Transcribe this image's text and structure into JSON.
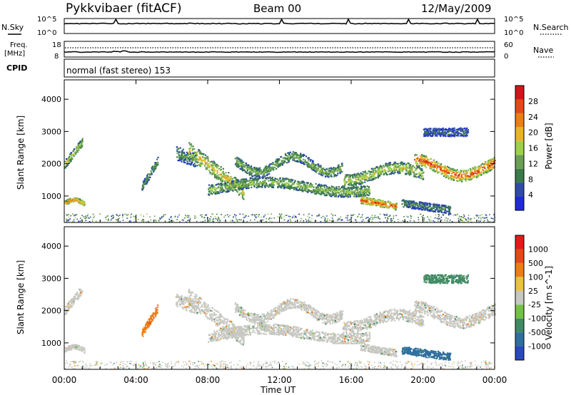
{
  "header": {
    "station": "Pykkvibaer (fitACF)",
    "beam": "Beam 00",
    "date": "12/May/2009"
  },
  "panel_labels": {
    "nsky": "N.Sky",
    "freq_top": "Freq.",
    "freq_unit": "[MHz]",
    "cpid": "CPID",
    "nsearch": "N.Search",
    "nave": "Nave"
  },
  "noise_panel": {
    "left_ticks": [
      "10^5",
      "10^0"
    ],
    "right_ticks": [
      "10^5",
      "10^0"
    ]
  },
  "freq_panel": {
    "left_ticks": [
      "18",
      "8"
    ],
    "right_ticks": [
      "60",
      "0"
    ]
  },
  "cpid_panel": {
    "text": "normal (fast stereo) 153"
  },
  "colors": {
    "power": [
      "#1f2bd6",
      "#2f4aa8",
      "#3a7b4a",
      "#6b9f55",
      "#9fd04a",
      "#e8b426",
      "#ee7d12",
      "#e44a12",
      "#d2151a"
    ],
    "velocity": [
      "#2a48c2",
      "#2f6f9e",
      "#3f8a62",
      "#74c244",
      "#c8c8c2",
      "#e8c240",
      "#ee7d12",
      "#e44a12",
      "#e41a1a"
    ]
  },
  "chart_data": [
    {
      "type": "heatmap",
      "name": "Power",
      "xlabel": "",
      "ylabel": "Slant Range [km]",
      "x_ticks": [
        "00:00",
        "04:00",
        "08:00",
        "12:00",
        "16:00",
        "20:00",
        "00:00"
      ],
      "y_ticks": [
        1000,
        2000,
        3000,
        4000
      ],
      "xlim_hours": [
        0,
        24
      ],
      "ylim": [
        180,
        4600
      ],
      "colorbar": {
        "label": "Power [dB]",
        "ticks": [
          "4",
          "8",
          "12",
          "16",
          "20",
          "24",
          "28"
        ],
        "range": [
          0,
          30
        ]
      }
    },
    {
      "type": "heatmap",
      "name": "Velocity",
      "xlabel": "Time UT",
      "ylabel": "Slant Range [km]",
      "x_ticks": [
        "00:00",
        "04:00",
        "08:00",
        "12:00",
        "16:00",
        "20:00",
        "00:00"
      ],
      "y_ticks": [
        1000,
        2000,
        3000,
        4000
      ],
      "xlim_hours": [
        0,
        24
      ],
      "ylim": [
        180,
        4600
      ],
      "colorbar": {
        "label": "Velocity [m s^-1]",
        "ticks": [
          "1000",
          "500",
          "100",
          "25",
          "-25",
          "-100",
          "-500",
          "-1000"
        ]
      }
    }
  ]
}
